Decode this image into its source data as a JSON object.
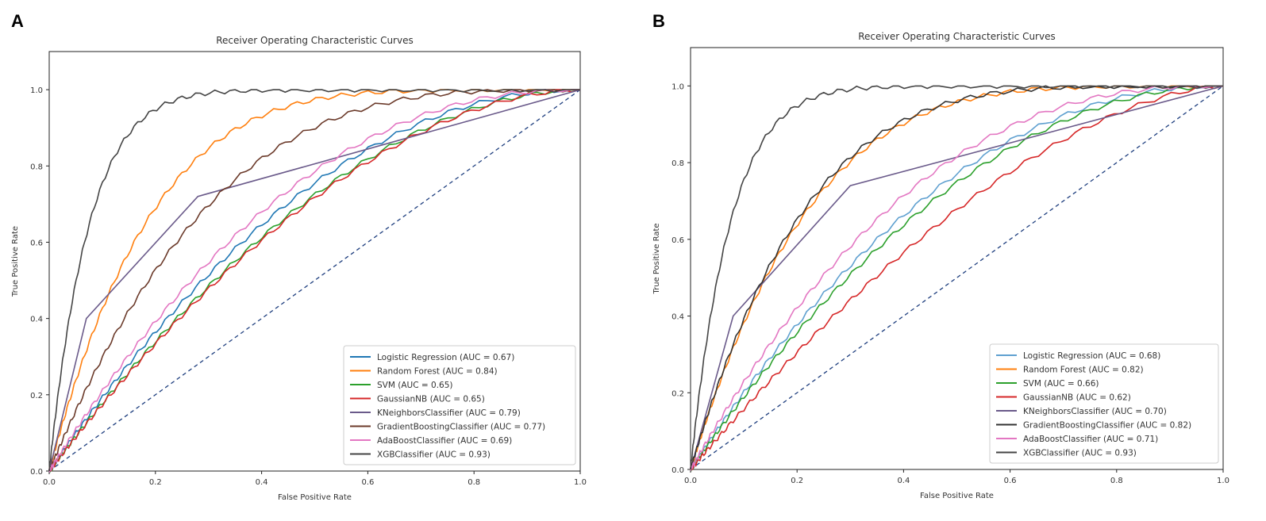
{
  "chart_data": [
    {
      "panel": "A",
      "type": "line",
      "title": "Receiver Operating Characteristic Curves",
      "xlabel": "False Positive Rate",
      "ylabel": "True Positive Rate",
      "xlim": [
        0,
        1.0
      ],
      "ylim": [
        0,
        1.1
      ],
      "xticks": [
        "0.0",
        "0.2",
        "0.4",
        "0.6",
        "0.8",
        "1.0"
      ],
      "yticks": [
        "0.0",
        "0.2",
        "0.4",
        "0.6",
        "0.8",
        "1.0"
      ],
      "legend_position": "lower-right",
      "series": [
        {
          "name": "Logistic Regression (AUC = 0.67)",
          "auc": 0.67,
          "color": "#1f77b4"
        },
        {
          "name": "Random Forest (AUC = 0.84)",
          "auc": 0.84,
          "color": "#ff7f0e"
        },
        {
          "name": "SVM (AUC = 0.65)",
          "auc": 0.65,
          "color": "#2ca02c"
        },
        {
          "name": "GaussianNB (AUC = 0.65)",
          "auc": 0.645,
          "color": "#d62728"
        },
        {
          "name": "KNeighborsClassifier (AUC = 0.79)",
          "auc": 0.79,
          "color": "#6a5a8a",
          "points": [
            [
              0,
              0
            ],
            [
              0.07,
              0.4
            ],
            [
              0.28,
              0.72
            ],
            [
              1,
              1
            ]
          ]
        },
        {
          "name": "GradientBoostingClassifier (AUC = 0.77)",
          "auc": 0.77,
          "color": "#6b3a2a"
        },
        {
          "name": "AdaBoostClassifier (AUC = 0.69)",
          "auc": 0.69,
          "color": "#e377c2"
        },
        {
          "name": "XGBClassifier (AUC = 0.93)",
          "auc": 0.93,
          "color": "#444444"
        }
      ]
    },
    {
      "panel": "B",
      "type": "line",
      "title": "Receiver Operating Characteristic Curves",
      "xlabel": "False Positive Rate",
      "ylabel": "True Positive Rate",
      "xlim": [
        0,
        1.0
      ],
      "ylim": [
        0,
        1.1
      ],
      "xticks": [
        "0.0",
        "0.2",
        "0.4",
        "0.6",
        "0.8",
        "1.0"
      ],
      "yticks": [
        "0.0",
        "0.2",
        "0.4",
        "0.6",
        "0.8",
        "1.0"
      ],
      "legend_position": "lower-right",
      "series": [
        {
          "name": "Logistic Regression (AUC = 0.68)",
          "auc": 0.68,
          "color": "#5fa0d0"
        },
        {
          "name": "Random Forest (AUC = 0.82)",
          "auc": 0.82,
          "color": "#ff7f0e"
        },
        {
          "name": "SVM (AUC = 0.66)",
          "auc": 0.665,
          "color": "#2ca02c"
        },
        {
          "name": "GaussianNB (AUC = 0.62)",
          "auc": 0.62,
          "color": "#d62728"
        },
        {
          "name": "KNeighborsClassifier (AUC = 0.70)",
          "auc": 0.7,
          "color": "#6a5a8a",
          "points": [
            [
              0,
              0
            ],
            [
              0.08,
              0.4
            ],
            [
              0.3,
              0.74
            ],
            [
              1,
              1
            ]
          ]
        },
        {
          "name": "GradientBoostingClassifier (AUC = 0.82)",
          "auc": 0.825,
          "color": "#333333"
        },
        {
          "name": "AdaBoostClassifier (AUC = 0.71)",
          "auc": 0.71,
          "color": "#e377c2"
        },
        {
          "name": "XGBClassifier (AUC = 0.93)",
          "auc": 0.93,
          "color": "#444444"
        }
      ]
    }
  ]
}
